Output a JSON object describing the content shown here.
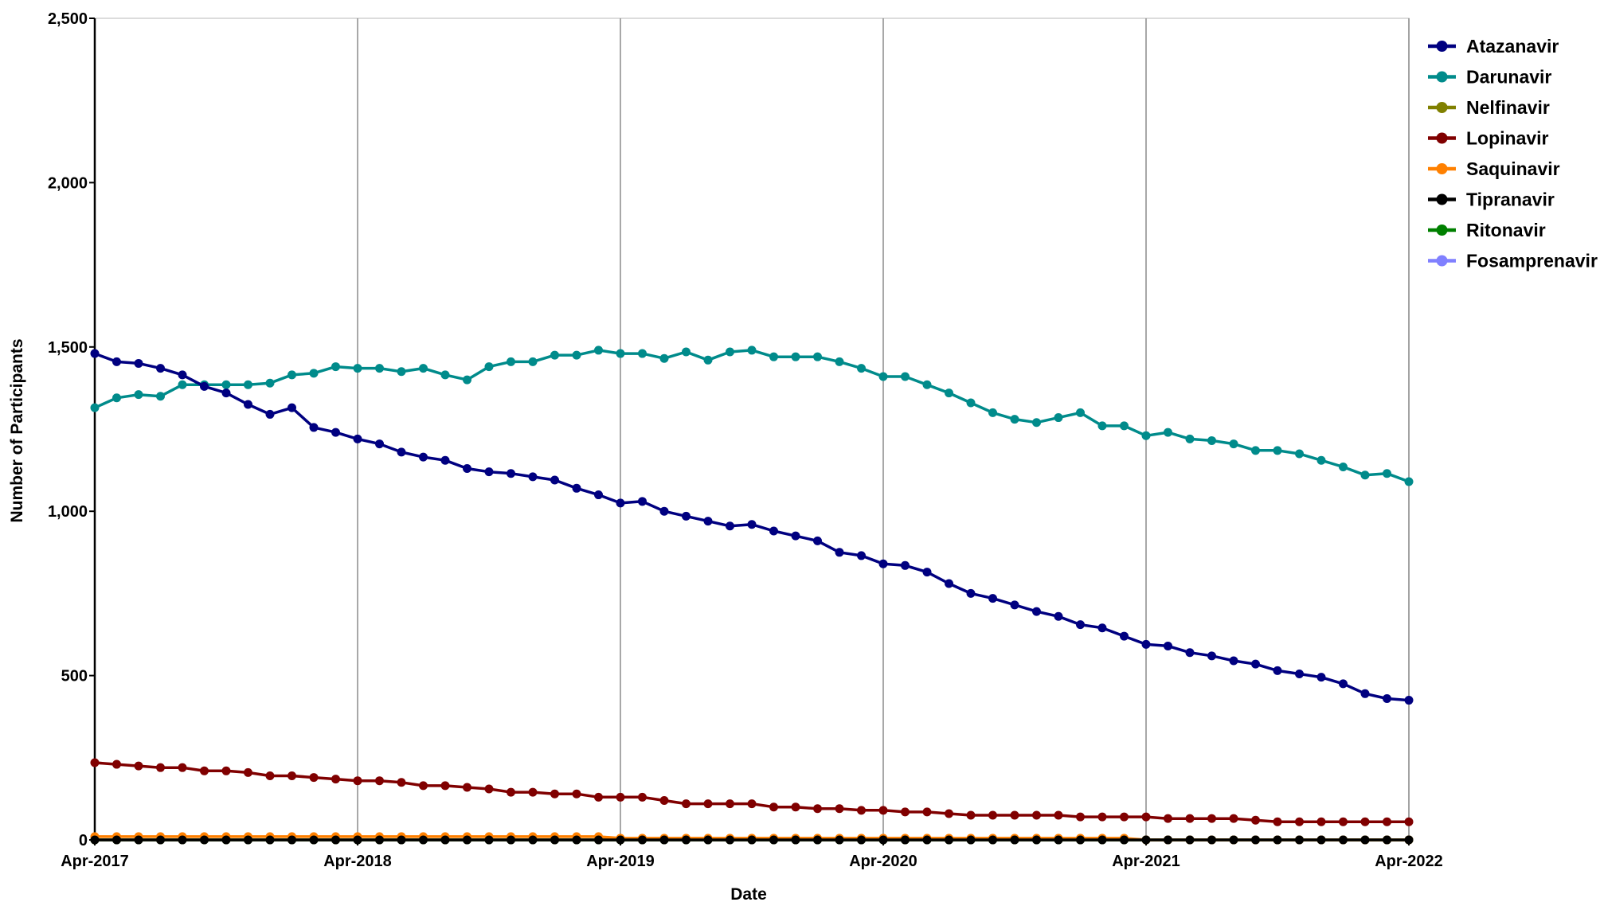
{
  "chart_data": {
    "type": "line",
    "xlabel": "Date",
    "ylabel": "Number of Participants",
    "ylim": [
      0,
      2500
    ],
    "yticks": [
      0,
      500,
      1000,
      1500,
      2000,
      2500
    ],
    "ytick_labels": [
      "0",
      "500",
      "1,000",
      "1,500",
      "2,000",
      "2,500"
    ],
    "xlim": [
      "2017-04",
      "2022-04"
    ],
    "xticks": [
      "2017-04",
      "2018-04",
      "2019-04",
      "2020-04",
      "2021-04",
      "2022-04"
    ],
    "xtick_labels": [
      "Apr-2017",
      "Apr-2018",
      "Apr-2019",
      "Apr-2020",
      "Apr-2021",
      "Apr-2022"
    ],
    "grid": "vertical",
    "legend": "right",
    "x": [
      "2017-04",
      "2017-05",
      "2017-06",
      "2017-07",
      "2017-08",
      "2017-09",
      "2017-10",
      "2017-11",
      "2017-12",
      "2018-01",
      "2018-02",
      "2018-03",
      "2018-04",
      "2018-05",
      "2018-06",
      "2018-07",
      "2018-08",
      "2018-09",
      "2018-10",
      "2018-11",
      "2018-12",
      "2019-01",
      "2019-02",
      "2019-03",
      "2019-04",
      "2019-05",
      "2019-06",
      "2019-07",
      "2019-08",
      "2019-09",
      "2019-10",
      "2019-11",
      "2019-12",
      "2020-01",
      "2020-02",
      "2020-03",
      "2020-04",
      "2020-05",
      "2020-06",
      "2020-07",
      "2020-08",
      "2020-09",
      "2020-10",
      "2020-11",
      "2020-12",
      "2021-01",
      "2021-02",
      "2021-03",
      "2021-04",
      "2021-05",
      "2021-06",
      "2021-07",
      "2021-08",
      "2021-09",
      "2021-10",
      "2021-11",
      "2021-12",
      "2022-01",
      "2022-02",
      "2022-03",
      "2022-04"
    ],
    "series": [
      {
        "name": "Atazanavir",
        "color": "#000080",
        "values": [
          1480,
          1455,
          1450,
          1435,
          1415,
          1380,
          1360,
          1325,
          1295,
          1315,
          1255,
          1240,
          1220,
          1205,
          1180,
          1165,
          1155,
          1130,
          1120,
          1115,
          1105,
          1095,
          1070,
          1050,
          1025,
          1030,
          1000,
          985,
          970,
          955,
          960,
          940,
          925,
          910,
          875,
          865,
          840,
          835,
          815,
          780,
          750,
          735,
          715,
          695,
          680,
          655,
          645,
          620,
          595,
          590,
          570,
          560,
          545,
          535,
          515,
          505,
          495,
          475,
          445,
          430,
          425
        ]
      },
      {
        "name": "Darunavir",
        "color": "#008B8B",
        "values": [
          1315,
          1345,
          1355,
          1350,
          1385,
          1385,
          1385,
          1385,
          1390,
          1415,
          1420,
          1440,
          1435,
          1435,
          1425,
          1435,
          1415,
          1400,
          1440,
          1455,
          1455,
          1475,
          1475,
          1490,
          1480,
          1480,
          1465,
          1485,
          1460,
          1485,
          1490,
          1470,
          1470,
          1470,
          1455,
          1435,
          1410,
          1410,
          1385,
          1360,
          1330,
          1300,
          1280,
          1270,
          1285,
          1300,
          1260,
          1260,
          1230,
          1240,
          1220,
          1215,
          1205,
          1185,
          1185,
          1175,
          1155,
          1135,
          1110,
          1115,
          1090
        ]
      },
      {
        "name": "Nelfinavir",
        "color": "#808000",
        "values": [
          0,
          0,
          0,
          0,
          0,
          0,
          0,
          0,
          0,
          0,
          0,
          0,
          0,
          0,
          0,
          0,
          0,
          0,
          0,
          0,
          0,
          0,
          0,
          0,
          0,
          0,
          0,
          0,
          0,
          0,
          0,
          0,
          0,
          0,
          0,
          0,
          0,
          0,
          0,
          0,
          0,
          0,
          0,
          0,
          0,
          0,
          0,
          0,
          0,
          0,
          0,
          0,
          0,
          0,
          0,
          0,
          0,
          0,
          0,
          0,
          0
        ]
      },
      {
        "name": "Lopinavir",
        "color": "#800000",
        "values": [
          235,
          230,
          225,
          220,
          220,
          210,
          210,
          205,
          195,
          195,
          190,
          185,
          180,
          180,
          175,
          165,
          165,
          160,
          155,
          145,
          145,
          140,
          140,
          130,
          130,
          130,
          120,
          110,
          110,
          110,
          110,
          100,
          100,
          95,
          95,
          90,
          90,
          85,
          85,
          80,
          75,
          75,
          75,
          75,
          75,
          70,
          70,
          70,
          70,
          65,
          65,
          65,
          65,
          60,
          55,
          55,
          55,
          55,
          55,
          55,
          55
        ]
      },
      {
        "name": "Saquinavir",
        "color": "#FF8000",
        "values": [
          10,
          10,
          10,
          10,
          10,
          10,
          10,
          10,
          10,
          10,
          10,
          10,
          10,
          10,
          10,
          10,
          10,
          10,
          10,
          10,
          10,
          10,
          10,
          10,
          5,
          5,
          5,
          5,
          5,
          5,
          5,
          5,
          5,
          5,
          5,
          5,
          5,
          5,
          5,
          5,
          5,
          5,
          5,
          5,
          5,
          5,
          5,
          5,
          0,
          0,
          0,
          0,
          0,
          0,
          0,
          0,
          0,
          0,
          0,
          0,
          0
        ]
      },
      {
        "name": "Tipranavir",
        "color": "#000000",
        "values": [
          0,
          0,
          0,
          0,
          0,
          0,
          0,
          0,
          0,
          0,
          0,
          0,
          0,
          0,
          0,
          0,
          0,
          0,
          0,
          0,
          0,
          0,
          0,
          0,
          0,
          0,
          0,
          0,
          0,
          0,
          0,
          0,
          0,
          0,
          0,
          0,
          0,
          0,
          0,
          0,
          0,
          0,
          0,
          0,
          0,
          0,
          0,
          0,
          0,
          0,
          0,
          0,
          0,
          0,
          0,
          0,
          0,
          0,
          0,
          0,
          0
        ]
      },
      {
        "name": "Ritonavir",
        "color": "#008000",
        "values": [
          0,
          0,
          0,
          0,
          0,
          0,
          0,
          0,
          0,
          0,
          0,
          0,
          0,
          0,
          0,
          0,
          0,
          0,
          0,
          0,
          0,
          0,
          0,
          0,
          0,
          0,
          0,
          0,
          0,
          0,
          0,
          0,
          0,
          0,
          0,
          0,
          0,
          0,
          0,
          0,
          0,
          0,
          0,
          0,
          0,
          0,
          0,
          0,
          0,
          0,
          0,
          0,
          0,
          0,
          0,
          0,
          0,
          0,
          0,
          0,
          0
        ]
      },
      {
        "name": "Fosamprenavir",
        "color": "#8080FF",
        "values": [
          0,
          0,
          0,
          0,
          0,
          0,
          0,
          0,
          0,
          0,
          0,
          0,
          0,
          0,
          0,
          0,
          0,
          0,
          0,
          0,
          0,
          0,
          0,
          0,
          0,
          0,
          0,
          0,
          0,
          0,
          0,
          0,
          0,
          0,
          0,
          0,
          0,
          0,
          0,
          0,
          0,
          0,
          0,
          0,
          0,
          0,
          0,
          0,
          0,
          0,
          0,
          0,
          0,
          0,
          0,
          0,
          0,
          0,
          0,
          0,
          0
        ]
      }
    ]
  }
}
